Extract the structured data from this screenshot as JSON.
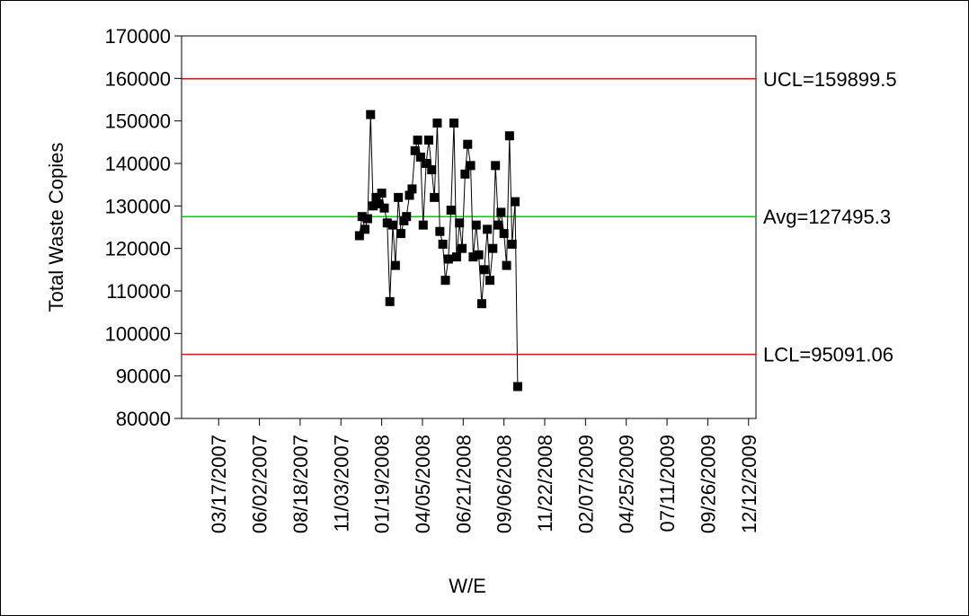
{
  "chart_data": {
    "type": "line",
    "title": "",
    "xlabel": "W/E",
    "ylabel": "Total Waste Copies",
    "ylim": [
      80000,
      170000
    ],
    "y_ticks": [
      80000,
      90000,
      100000,
      110000,
      120000,
      130000,
      140000,
      150000,
      160000,
      170000
    ],
    "x_ticks": [
      "03/17/2007",
      "06/02/2007",
      "08/18/2007",
      "11/03/2007",
      "01/19/2008",
      "04/05/2008",
      "06/21/2008",
      "09/06/2008",
      "11/22/2008",
      "02/07/2009",
      "04/25/2009",
      "07/11/2009",
      "09/26/2009",
      "12/12/2009"
    ],
    "x_range_weeks_from_first_tick": [
      -10,
      145
    ],
    "grid": false,
    "legend": "none",
    "control_limits": {
      "ucl": {
        "value": 159899.5,
        "label": "UCL=159899.5",
        "color": "#ff0000"
      },
      "avg": {
        "value": 127495.3,
        "label": "Avg=127495.3",
        "color": "#00cc00"
      },
      "lcl": {
        "value": 95091.06,
        "label": "LCL=95091.06",
        "color": "#ff0000"
      }
    },
    "series": [
      {
        "color": "#000000",
        "marker": "square",
        "points": [
          [
            38,
            123000
          ],
          [
            38.7,
            127500
          ],
          [
            39.5,
            124500
          ],
          [
            40.2,
            127000
          ],
          [
            41,
            151500
          ],
          [
            41.7,
            130000
          ],
          [
            42.5,
            132000
          ],
          [
            43.2,
            130500
          ],
          [
            44,
            133000
          ],
          [
            44.7,
            129500
          ],
          [
            45.5,
            126000
          ],
          [
            46.2,
            107500
          ],
          [
            47,
            125500
          ],
          [
            47.7,
            116000
          ],
          [
            48.5,
            132000
          ],
          [
            49.2,
            123500
          ],
          [
            50,
            126500
          ],
          [
            50.7,
            127500
          ],
          [
            51.5,
            132500
          ],
          [
            52.2,
            134000
          ],
          [
            53,
            143000
          ],
          [
            53.7,
            145500
          ],
          [
            54.5,
            141500
          ],
          [
            55.2,
            125500
          ],
          [
            56,
            140000
          ],
          [
            56.7,
            145500
          ],
          [
            57.5,
            138500
          ],
          [
            58.2,
            132000
          ],
          [
            59,
            149500
          ],
          [
            59.7,
            124000
          ],
          [
            60.5,
            121000
          ],
          [
            61.2,
            112500
          ],
          [
            62,
            117500
          ],
          [
            62.7,
            129000
          ],
          [
            63.5,
            149500
          ],
          [
            64.2,
            118000
          ],
          [
            65,
            126000
          ],
          [
            65.7,
            120000
          ],
          [
            66.5,
            137500
          ],
          [
            67.2,
            144500
          ],
          [
            68,
            139500
          ],
          [
            68.7,
            118000
          ],
          [
            69.5,
            125500
          ],
          [
            70.2,
            118500
          ],
          [
            71,
            107000
          ],
          [
            71.7,
            115000
          ],
          [
            72.5,
            124500
          ],
          [
            73.2,
            112500
          ],
          [
            74,
            120000
          ],
          [
            74.7,
            139500
          ],
          [
            75.5,
            125500
          ],
          [
            76.2,
            128500
          ],
          [
            77,
            123500
          ],
          [
            77.7,
            116000
          ],
          [
            78.5,
            146500
          ],
          [
            79.2,
            121000
          ],
          [
            80,
            131000
          ],
          [
            80.7,
            87500
          ]
        ]
      }
    ]
  }
}
